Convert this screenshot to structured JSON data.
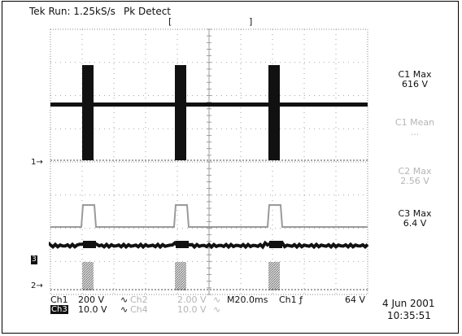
{
  "header": {
    "run_status": "Tek Run: 1.25kS/s",
    "acq_mode": "Pk Detect",
    "cursor_left": "[",
    "cursor_right": "]"
  },
  "side_readouts": [
    {
      "label": "C1 Max",
      "value": "616 V",
      "faint": false
    },
    {
      "label": "C1 Mean",
      "value": "...",
      "faint": true
    },
    {
      "label": "C2 Max",
      "value": "2.56 V",
      "faint": true
    },
    {
      "label": "C3 Max",
      "value": "6.4 V",
      "faint": false
    }
  ],
  "channel_markers": {
    "ch1": "1",
    "ch3": "3",
    "ch2": "2"
  },
  "footer": {
    "ch1": {
      "name": "Ch1",
      "scale": "200 V",
      "sym": "∿"
    },
    "ch2": {
      "name": "Ch2",
      "scale": "2.00 V",
      "sym": "∿"
    },
    "ch3": {
      "name": "Ch3",
      "scale": "10.0 V",
      "sym": "∿"
    },
    "ch4": {
      "name": "Ch4",
      "scale": "10.0 V",
      "sym": "∿"
    },
    "timebase": "M20.0ms",
    "trigger": "Ch1 ƒ",
    "trigger_level": "64 V",
    "date": "4 Jun 2001",
    "time": "10:35:51"
  },
  "colors": {
    "trace": "#111111",
    "grid": "#8a8a8a",
    "hatch": "#9a9a9a"
  }
}
